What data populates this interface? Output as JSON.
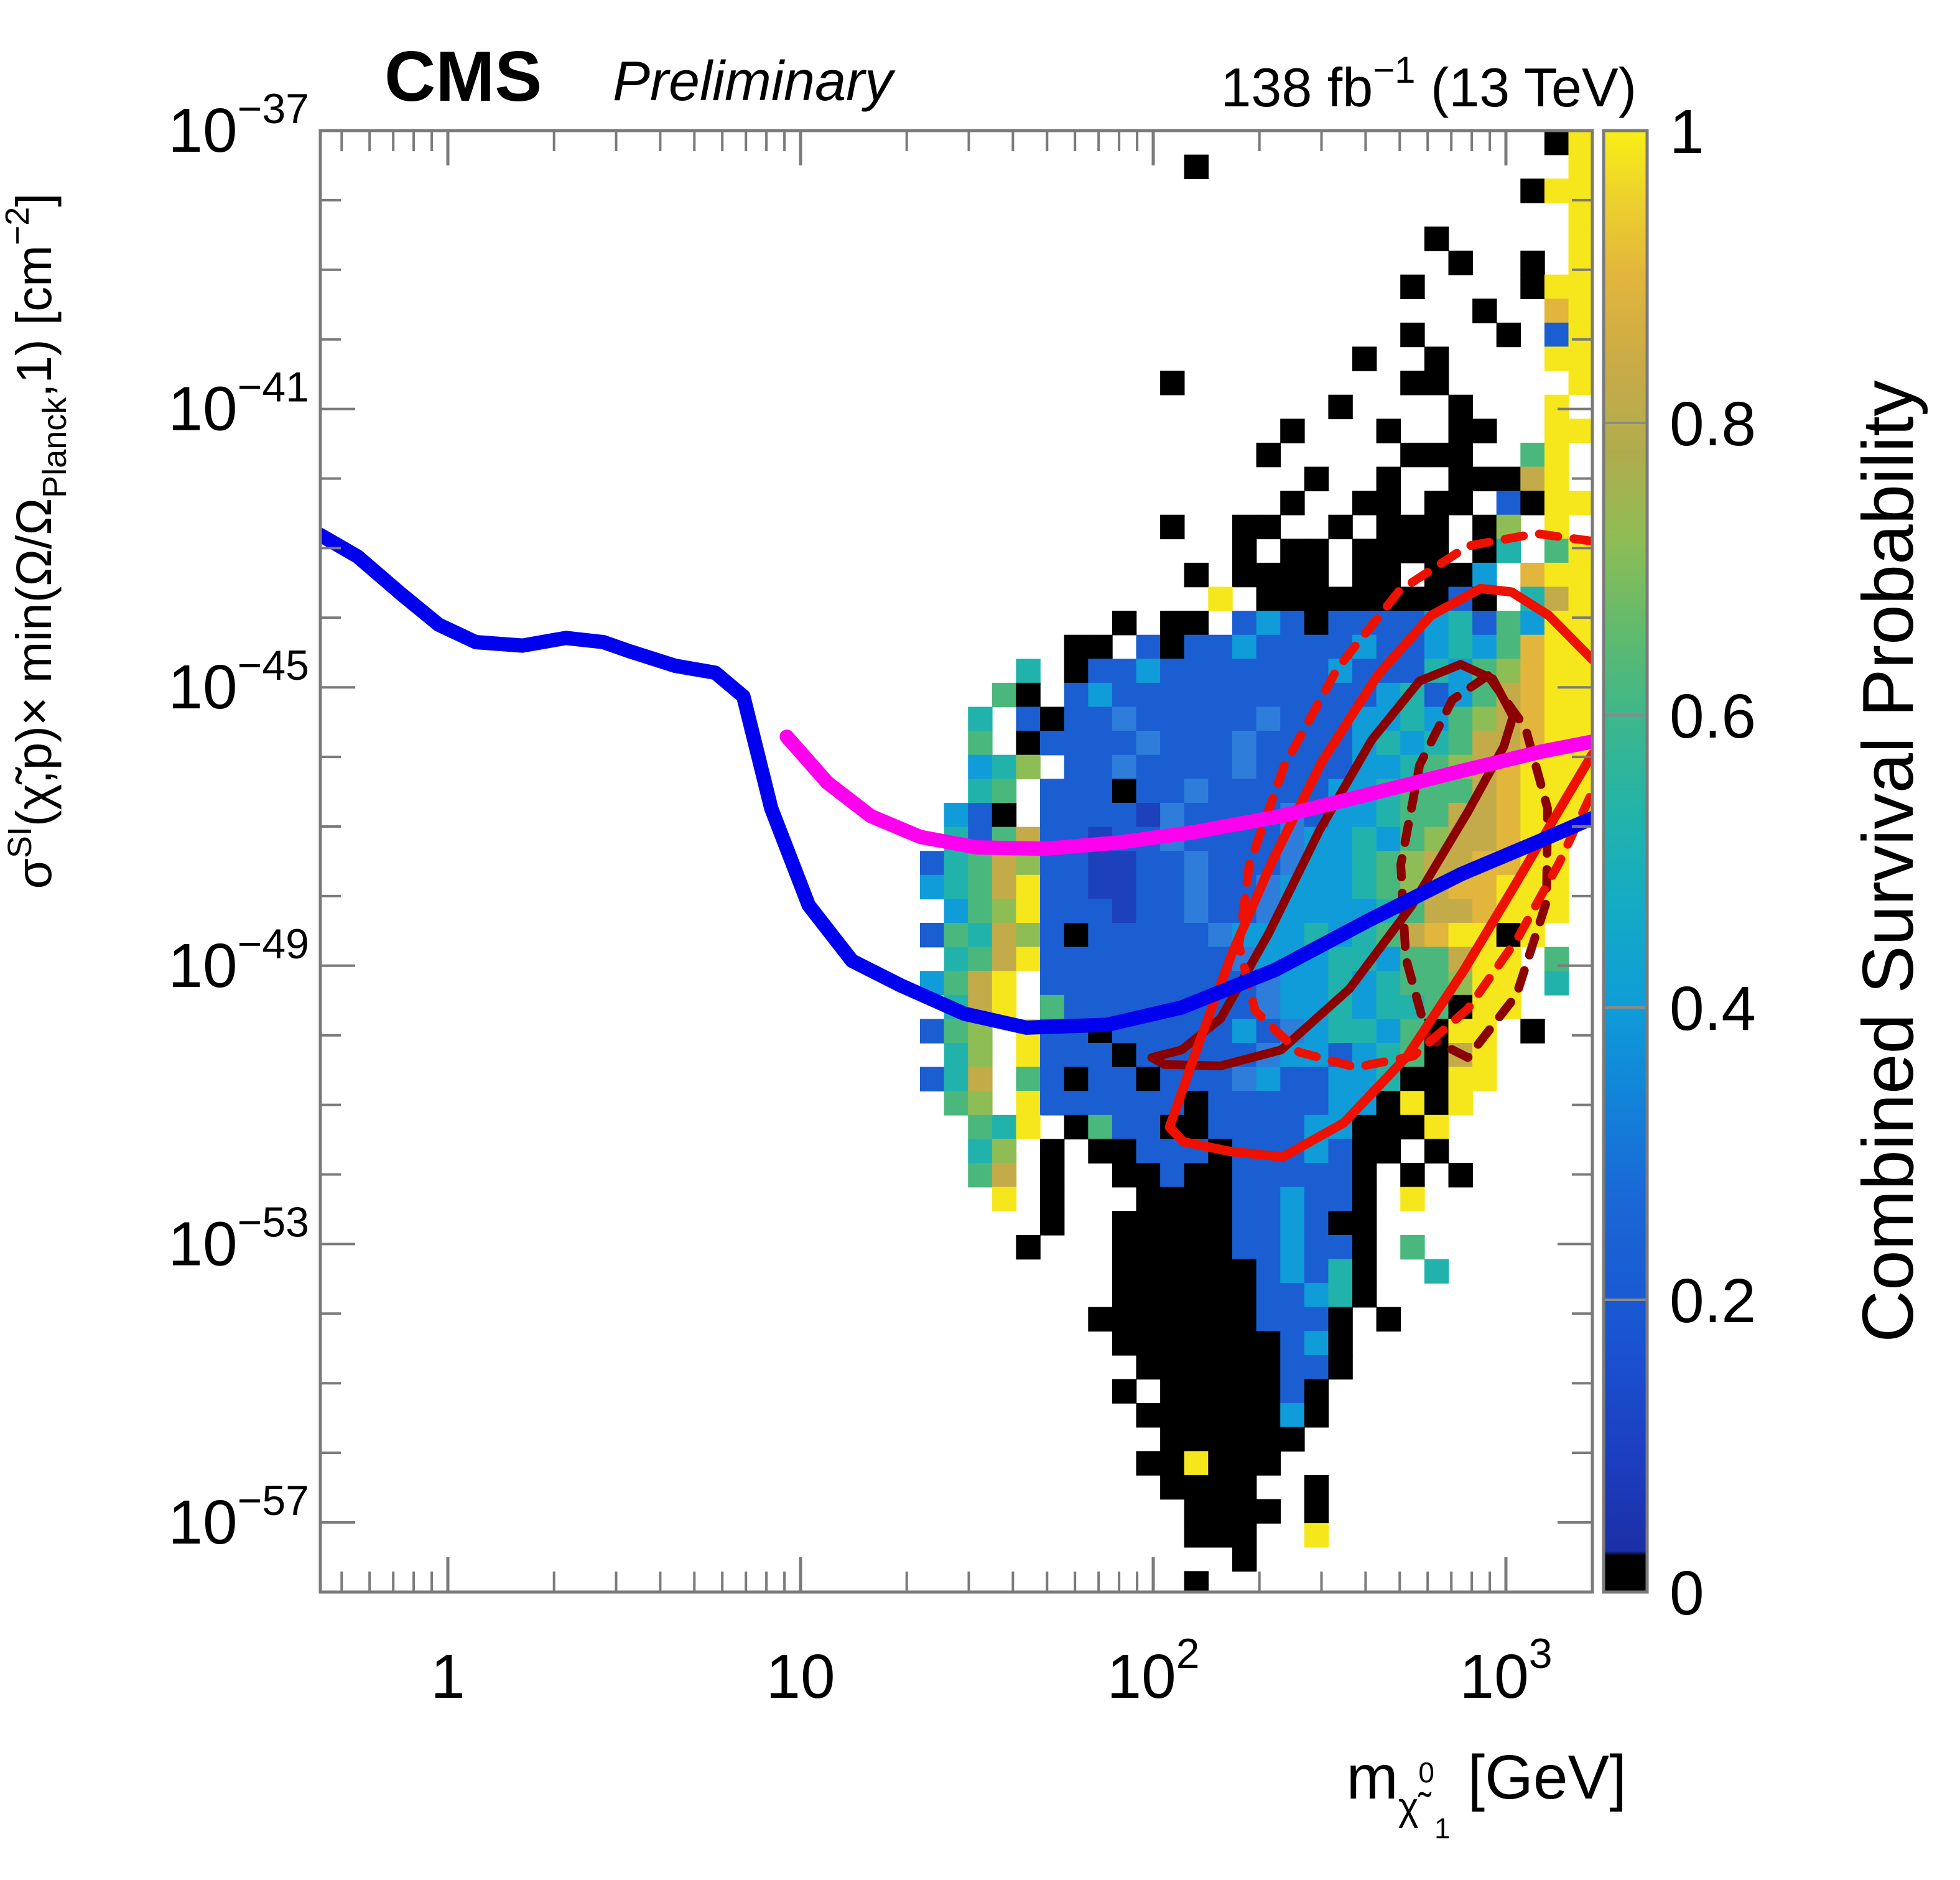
{
  "header": {
    "experiment": "CMS",
    "status": "Preliminary",
    "lumi_main": "138 fb",
    "lumi_sup": "−1",
    "lumi_rest": " (13 TeV)"
  },
  "chart_data": {
    "type": "heatmap",
    "title": "",
    "x_axis": {
      "label_plain": "m_chi1_0 [GeV]",
      "scale": "log",
      "range_log10": [
        -0.3615,
        3.2452
      ],
      "tick_labels": [
        {
          "lm": 0,
          "base": "1",
          "exp": ""
        },
        {
          "lm": 1,
          "base": "10",
          "exp": ""
        },
        {
          "lm": 2,
          "base": "10",
          "exp": "2"
        },
        {
          "lm": 3,
          "base": "10",
          "exp": "3"
        }
      ],
      "title_parts": [
        {
          "t": "m",
          "off": 0,
          "fs": 100
        },
        {
          "t": "χ̃",
          "off": 34,
          "fs": 62
        },
        {
          "t": "0",
          "off": -26,
          "fs": 46
        },
        {
          "t": "1",
          "off": 64,
          "fs": 46
        },
        {
          "t": " [GeV]",
          "off": 0,
          "fs": 100
        }
      ]
    },
    "y_axis": {
      "label_plain": "sigma_SI(chi,p) x min(Omega/Omega_Planck,1) [cm-2]",
      "scale": "log",
      "range_log10": [
        -58,
        -37
      ],
      "labeled_decades": [
        -37,
        -41,
        -45,
        -49,
        -53,
        -57
      ],
      "tick_labels": [
        {
          "L": -37,
          "base": "10",
          "exp": "−37"
        },
        {
          "L": -41,
          "base": "10",
          "exp": "−41"
        },
        {
          "L": -45,
          "base": "10",
          "exp": "−45"
        },
        {
          "L": -49,
          "base": "10",
          "exp": "−49"
        },
        {
          "L": -53,
          "base": "10",
          "exp": "−53"
        },
        {
          "L": -57,
          "base": "10",
          "exp": "−57"
        }
      ],
      "title_parts": [
        {
          "t": "σ",
          "off": 0,
          "fs": 80
        },
        {
          "t": "SI",
          "off": -32,
          "fs": 54
        },
        {
          "t": "(χ̃,p)× min(Ω/Ω",
          "off": 0,
          "fs": 80
        },
        {
          "t": "Planck",
          "off": 24,
          "fs": 54
        },
        {
          "t": ",1) [cm",
          "off": 0,
          "fs": 80
        },
        {
          "t": "−2",
          "off": -36,
          "fs": 54
        },
        {
          "t": "]",
          "off": 0,
          "fs": 80
        }
      ]
    },
    "colorbar": {
      "label": "Combined Survival Probability",
      "range": [
        0,
        1
      ],
      "ticks": [
        0,
        0.2,
        0.4,
        0.6,
        0.8,
        1
      ],
      "tick_labels": [
        "0",
        "0.2",
        "0.4",
        "0.6",
        "0.8",
        "1"
      ],
      "gradient": [
        [
          0,
          "#000000"
        ],
        [
          0.025,
          "#000000"
        ],
        [
          0.028,
          "#1b2fa6"
        ],
        [
          0.09,
          "#1c3ec0"
        ],
        [
          0.17,
          "#1a53d0"
        ],
        [
          0.27,
          "#1a68d6"
        ],
        [
          0.33,
          "#1380d8"
        ],
        [
          0.4,
          "#0f9cd8"
        ],
        [
          0.47,
          "#14abc4"
        ],
        [
          0.53,
          "#21b3ab"
        ],
        [
          0.6,
          "#3eb78a"
        ],
        [
          0.66,
          "#62ba6c"
        ],
        [
          0.72,
          "#8fbd55"
        ],
        [
          0.78,
          "#b0ac4e"
        ],
        [
          0.84,
          "#c9ab47"
        ],
        [
          0.9,
          "#e2b53c"
        ],
        [
          0.95,
          "#eccf2e"
        ],
        [
          1,
          "#f8ef16"
        ]
      ]
    },
    "palette": [
      {
        "char": "k",
        "value": 0.0,
        "color": "#000000"
      },
      {
        "char": "B",
        "value": 0.12,
        "color": "#1d41bb"
      },
      {
        "char": "b",
        "value": 0.22,
        "color": "#1a5ed2"
      },
      {
        "char": "l",
        "value": 0.3,
        "color": "#2e7ddb"
      },
      {
        "char": "c",
        "value": 0.38,
        "color": "#0f9cd8"
      },
      {
        "char": "t",
        "value": 0.5,
        "color": "#21b3ab"
      },
      {
        "char": "g",
        "value": 0.62,
        "color": "#4ab87c"
      },
      {
        "char": "o",
        "value": 0.7,
        "color": "#8fbd55"
      },
      {
        "char": "m",
        "value": 0.78,
        "color": "#c3ab4a"
      },
      {
        "char": "n",
        "value": 0.85,
        "color": "#e2b53c"
      },
      {
        "char": "y",
        "value": 0.97,
        "color": "#f5e71c"
      }
    ],
    "grid": {
      "cols": 28,
      "rows": 61,
      "log10_mass_start": 1.3386,
      "log10_mass_step": 0.0681,
      "log10_sigma_start": -37,
      "log10_sigma_step": -0.345,
      "rows_data": [
        "..........................ky",
        "...........k...............y",
        ".........................kyy",
        "...........................y",
        ".....................k.....y",
        "......................k..k.y",
        "....................k....kyy",
        ".......................k..ny",
        "....................k...k.by",
        "..................k..k....yy",
        "..........k.........kk.....y",
        ".................k....k...y.",
        "...............k...k..kk..yy",
        "..............k.....kkk..gy.",
        "................k..k..kkkmy.",
        "...............k..kk.kk.bkyy",
        "..........k..kk..k.kkk.ko.y.",
        ".............k.kk.kkkk.kt.gy",
        "...........k.kkkk.kk.kkc.nyy",
        "............y.kkkkkkkkbk.tmy",
        "........k.kk.bcbkbbbbctbgcyy",
        "......kk.bkbbcbbbbcbbctcgnyy",
        "....t.kbbcbbbbbbbcbbbtcgonyy",
        "...gk.bcbbbbbbbbbbbctbcgmnyy",
        "..t.bkbblbbbbblbbbcctcgomnyy",
        "..g.kbbbblbbblbbbbctctgmmnyy",
        "..cto.bblbbbblbbbbcctgomnyyy",
        "..tg.bbbkbblbbbbbcctgggmnyyy",
        ".cbk.bbbbBlbbbblbcctggmmnyyy",
        ".tbgmbbBbblbbbblcctcgommnyy.",
        "btgmobbBBbblbbblcctgommnnyy.",
        "ctgmybbBBbblbblccctgomnnyyy.",
        ".cgoybbbBbblbblcccctgmmnyyy.",
        "bgtmobkbbbbblccctctgmnyyky..",
        ".tgmybbbbbbbblcccttcggmyy.g.",
        "cgmy.bbbbbbbbblcctctggoyy.t.",
        ".tmy.gbbbbbbbblcctcttgkyy...",
        "bgo.ybbkbbbbbcblcttcgkyy.k..",
        ".to.ybbbkbbbbblccbctgkmy....",
        "btm.gbkbbkbbblcbbcctkkyy....",
        ".go.ybbbbbbkbbbbbcckyky.....",
        "..gty.kgbbkkbbbbcckkky......",
        "..to.k.kkbbbkbbbcbkk.k......",
        "..gm.k..kkbkkbbbbbk.k.k.....",
        "...y.k...kkkkbbcbbk.y.......",
        ".....k..kkkkkbbcbkk.........",
        "....k...kkkkkbbcbbk.g.......",
        "........kkkkkkbcbtk..t......",
        "........kkkkkkbbctk.........",
        ".......kkkkkkkbbbk.k........",
        "........kkkkkkkbck..........",
        ".........kkkkkkbbk..........",
        "........k.kkkkkbk...........",
        ".........kkkkkkck...........",
        "..........kkkkkk............",
        ".........kkykkk.............",
        "..........kkkk..k...........",
        "...........kkkk.k...........",
        "...........kkk..y...........",
        ".............k..............",
        "...........k................"
      ]
    },
    "curves": [
      {
        "name": "direct-detection-limit-blue",
        "color": "#0000ee",
        "width": 23,
        "points": [
          [
            -0.362,
            -42.81
          ],
          [
            -0.256,
            -43.12
          ],
          [
            -0.132,
            -43.66
          ],
          [
            -0.026,
            -44.1
          ],
          [
            0.079,
            -44.35
          ],
          [
            0.212,
            -44.4
          ],
          [
            0.335,
            -44.29
          ],
          [
            0.441,
            -44.35
          ],
          [
            0.52,
            -44.49
          ],
          [
            0.644,
            -44.69
          ],
          [
            0.758,
            -44.79
          ],
          [
            0.838,
            -45.13
          ],
          [
            0.917,
            -46.74
          ],
          [
            1.023,
            -48.13
          ],
          [
            1.146,
            -48.93
          ],
          [
            1.287,
            -49.29
          ],
          [
            1.464,
            -49.69
          ],
          [
            1.64,
            -49.89
          ],
          [
            1.869,
            -49.85
          ],
          [
            2.081,
            -49.6
          ],
          [
            2.346,
            -49.06
          ],
          [
            2.61,
            -48.35
          ],
          [
            2.875,
            -47.68
          ],
          [
            3.095,
            -47.21
          ],
          [
            3.245,
            -46.88
          ]
        ]
      },
      {
        "name": "projection-limit-magenta",
        "color": "#ff00ee",
        "width": 23,
        "points": [
          [
            0.961,
            -45.71
          ],
          [
            1.076,
            -46.37
          ],
          [
            1.199,
            -46.85
          ],
          [
            1.34,
            -47.15
          ],
          [
            1.499,
            -47.3
          ],
          [
            1.693,
            -47.32
          ],
          [
            1.905,
            -47.23
          ],
          [
            2.116,
            -47.08
          ],
          [
            2.363,
            -46.85
          ],
          [
            2.61,
            -46.54
          ],
          [
            2.875,
            -46.2
          ],
          [
            3.104,
            -45.92
          ],
          [
            3.245,
            -45.78
          ]
        ]
      }
    ],
    "contours": [
      {
        "name": "contour-maroon-dotted",
        "color": "#8b0000",
        "width": 14,
        "dash": "30 26",
        "closed": true,
        "points": [
          [
            2.949,
            -44.83
          ],
          [
            3.055,
            -45.58
          ],
          [
            3.118,
            -46.74
          ],
          [
            3.115,
            -48.08
          ],
          [
            3.03,
            -49.42
          ],
          [
            2.892,
            -50.32
          ],
          [
            2.778,
            -50.03
          ],
          [
            2.716,
            -48.89
          ],
          [
            2.702,
            -47.55
          ],
          [
            2.755,
            -46.12
          ],
          [
            2.848,
            -45.18
          ]
        ]
      },
      {
        "name": "contour-maroon-solid",
        "color": "#8b0000",
        "width": 14,
        "dash": "",
        "closed": true,
        "points": [
          [
            3.02,
            -45.42
          ],
          [
            2.963,
            -44.88
          ],
          [
            2.871,
            -44.67
          ],
          [
            2.755,
            -44.91
          ],
          [
            2.619,
            -45.76
          ],
          [
            2.472,
            -47.05
          ],
          [
            2.328,
            -48.53
          ],
          [
            2.191,
            -49.76
          ],
          [
            2.081,
            -50.21
          ],
          [
            1.996,
            -50.32
          ],
          [
            2.032,
            -50.42
          ],
          [
            2.191,
            -50.44
          ],
          [
            2.363,
            -50.21
          ],
          [
            2.557,
            -49.33
          ],
          [
            2.734,
            -48.13
          ],
          [
            2.892,
            -46.79
          ],
          [
            2.994,
            -45.85
          ]
        ]
      },
      {
        "name": "contour-red-dotted",
        "color": "#ee1100",
        "width": 14,
        "dash": "30 26",
        "closed": false,
        "points": [
          [
            3.245,
            -42.9
          ],
          [
            3.086,
            -42.79
          ],
          [
            2.892,
            -42.97
          ],
          [
            2.698,
            -43.61
          ],
          [
            2.522,
            -44.73
          ],
          [
            2.372,
            -46.12
          ],
          [
            2.272,
            -47.55
          ],
          [
            2.243,
            -48.71
          ],
          [
            2.289,
            -49.65
          ],
          [
            2.413,
            -50.24
          ],
          [
            2.575,
            -50.46
          ],
          [
            2.737,
            -50.3
          ],
          [
            2.892,
            -49.62
          ],
          [
            3.034,
            -48.6
          ],
          [
            3.15,
            -47.53
          ],
          [
            3.238,
            -46.58
          ]
        ]
      },
      {
        "name": "contour-red-solid",
        "color": "#ee1100",
        "width": 15,
        "dash": "",
        "closed": false,
        "points": [
          [
            3.245,
            -44.6
          ],
          [
            3.122,
            -43.97
          ],
          [
            3.016,
            -43.63
          ],
          [
            2.928,
            -43.58
          ],
          [
            2.787,
            -43.97
          ],
          [
            2.637,
            -44.82
          ],
          [
            2.478,
            -46.07
          ],
          [
            2.337,
            -47.5
          ],
          [
            2.222,
            -48.84
          ],
          [
            2.131,
            -50.09
          ],
          [
            2.069,
            -50.99
          ],
          [
            2.046,
            -51.32
          ],
          [
            2.085,
            -51.53
          ],
          [
            2.219,
            -51.67
          ],
          [
            2.367,
            -51.75
          ],
          [
            2.54,
            -51.26
          ],
          [
            2.72,
            -50.3
          ],
          [
            2.879,
            -49.08
          ],
          [
            3.02,
            -47.89
          ],
          [
            3.143,
            -46.83
          ],
          [
            3.245,
            -45.96
          ]
        ]
      }
    ]
  }
}
